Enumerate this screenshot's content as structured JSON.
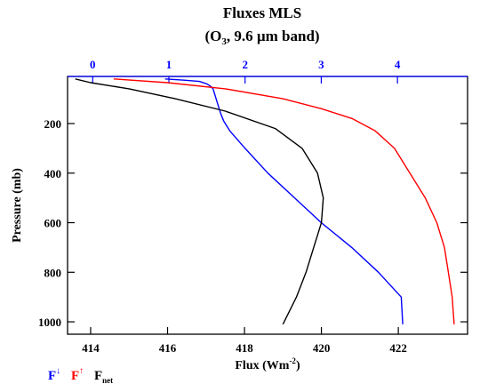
{
  "chart_data": {
    "type": "line",
    "title_main": "Fluxes MLS",
    "title_sub_prefix": "(O",
    "title_sub_subscript": "3",
    "title_sub_suffix": ", 9.6 µm band)",
    "xlabel_prefix": "Flux (Wm",
    "xlabel_sup": "-2",
    "xlabel_suffix": ")",
    "ylabel": "Pressure (mb)",
    "bottom_axis": {
      "range": [
        413.4,
        423.8
      ],
      "ticks": [
        414,
        416,
        418,
        420,
        422
      ],
      "tick_labels": [
        "414",
        "416",
        "418",
        "420",
        "422"
      ],
      "color": "#000000"
    },
    "top_axis": {
      "range": [
        -0.33,
        4.92
      ],
      "ticks": [
        0,
        1,
        2,
        3,
        4
      ],
      "tick_labels": [
        "0",
        "1",
        "2",
        "3",
        "4"
      ],
      "color": "#0000ff"
    },
    "y_axis": {
      "range": [
        10,
        1050
      ],
      "inverted": true,
      "ticks": [
        200,
        400,
        600,
        800,
        1000
      ],
      "tick_labels": [
        "200",
        "400",
        "600",
        "800",
        "1000"
      ]
    },
    "grid": false,
    "legend": {
      "placement": "bottom-left",
      "items": [
        {
          "base": "F",
          "sup": "↓",
          "color": "#0000ff"
        },
        {
          "base": "F",
          "sup": "↑",
          "color": "#ff0000"
        },
        {
          "base": "F",
          "sub": "net",
          "color": "#000000"
        }
      ]
    },
    "series": [
      {
        "key": "down",
        "color": "#0000ff",
        "axis": "top",
        "points": [
          [
            0.95,
            20
          ],
          [
            1.2,
            25
          ],
          [
            1.4,
            30
          ],
          [
            1.5,
            40
          ],
          [
            1.55,
            50
          ],
          [
            1.58,
            60
          ],
          [
            1.6,
            80
          ],
          [
            1.62,
            100
          ],
          [
            1.65,
            130
          ],
          [
            1.68,
            160
          ],
          [
            1.72,
            190
          ],
          [
            1.8,
            230
          ],
          [
            2.0,
            300
          ],
          [
            2.3,
            400
          ],
          [
            2.65,
            500
          ],
          [
            3.0,
            600
          ],
          [
            3.4,
            700
          ],
          [
            3.75,
            800
          ],
          [
            4.05,
            900
          ],
          [
            4.07,
            1010
          ]
        ]
      },
      {
        "key": "up",
        "color": "#ff0000",
        "axis": "bottom",
        "points": [
          [
            414.6,
            20
          ],
          [
            416.0,
            35
          ],
          [
            417.5,
            60
          ],
          [
            419.0,
            100
          ],
          [
            420.0,
            140
          ],
          [
            420.8,
            180
          ],
          [
            421.4,
            230
          ],
          [
            421.9,
            300
          ],
          [
            422.3,
            400
          ],
          [
            422.7,
            500
          ],
          [
            423.0,
            600
          ],
          [
            423.2,
            700
          ],
          [
            423.3,
            800
          ],
          [
            423.4,
            900
          ],
          [
            423.45,
            1010
          ]
        ]
      },
      {
        "key": "net",
        "color": "#000000",
        "axis": "bottom",
        "points": [
          [
            413.6,
            20
          ],
          [
            414.0,
            35
          ],
          [
            415.0,
            60
          ],
          [
            416.2,
            100
          ],
          [
            417.5,
            150
          ],
          [
            418.8,
            220
          ],
          [
            419.5,
            300
          ],
          [
            419.9,
            400
          ],
          [
            420.05,
            500
          ],
          [
            420.0,
            600
          ],
          [
            419.8,
            700
          ],
          [
            419.6,
            800
          ],
          [
            419.35,
            900
          ],
          [
            419.0,
            1010
          ]
        ]
      }
    ]
  }
}
